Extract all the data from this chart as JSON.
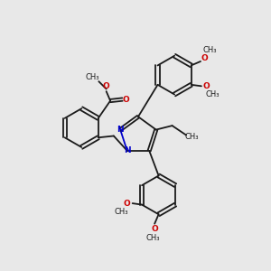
{
  "bg_color": "#e8e8e8",
  "bond_color": "#1a1a1a",
  "n_color": "#0000cc",
  "o_color": "#cc0000",
  "bond_width": 1.3,
  "font_size": 6.5,
  "fig_width": 3.0,
  "fig_height": 3.0,
  "dpi": 100,
  "xlim": [
    0,
    10
  ],
  "ylim": [
    0,
    10
  ]
}
